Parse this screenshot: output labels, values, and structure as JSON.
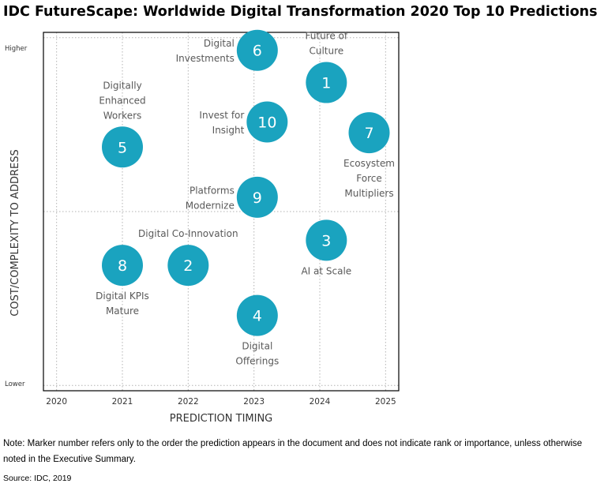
{
  "title": "IDC FutureScape: Worldwide Digital Transformation 2020 Top 10 Predictions",
  "note": "Note: Marker number refers only to the order the prediction appears in the document and does not indicate rank or importance, unless otherwise noted in the Executive Summary.",
  "source": "Source: IDC, 2019",
  "colors": {
    "bubble": "#1aa3bf",
    "bubble_text": "#ffffff",
    "label": "#595959",
    "grid": "#b3b3b3",
    "axis": "#000000"
  },
  "chart_data": {
    "type": "scatter",
    "title": "IDC FutureScape: Worldwide Digital Transformation 2020 Top 10 Predictions",
    "xlabel": "PREDICTION TIMING",
    "ylabel": "COST/COMPLEXITY TO ADDRESS",
    "xlim": [
      2019.8,
      2025.2
    ],
    "x_ticks": [
      "2020",
      "2021",
      "2022",
      "2023",
      "2024",
      "2025"
    ],
    "y_ticks": [
      "Higher",
      "Lower"
    ],
    "grid": true,
    "points": [
      {
        "marker": "1",
        "label": [
          "Future of",
          "Culture"
        ],
        "x": 2024.1,
        "y": 0.86,
        "label_pos": "above"
      },
      {
        "marker": "2",
        "label": [
          "Digital Co-Innovation"
        ],
        "x": 2022.0,
        "y": 0.35,
        "label_pos": "above"
      },
      {
        "marker": "3",
        "label": [
          "AI at Scale"
        ],
        "x": 2024.1,
        "y": 0.42,
        "label_pos": "below"
      },
      {
        "marker": "4",
        "label": [
          "Digital",
          "Offerings"
        ],
        "x": 2023.05,
        "y": 0.21,
        "label_pos": "below"
      },
      {
        "marker": "5",
        "label": [
          "Digitally",
          "Enhanced",
          "Workers"
        ],
        "x": 2021.0,
        "y": 0.68,
        "label_pos": "above"
      },
      {
        "marker": "6",
        "label": [
          "Digital",
          "Investments"
        ],
        "x": 2023.05,
        "y": 0.95,
        "label_pos": "left"
      },
      {
        "marker": "7",
        "label": [
          "Ecosystem",
          "Force",
          "Multipliers"
        ],
        "x": 2024.75,
        "y": 0.72,
        "label_pos": "below"
      },
      {
        "marker": "8",
        "label": [
          "Digital KPIs",
          "Mature"
        ],
        "x": 2021.0,
        "y": 0.35,
        "label_pos": "below"
      },
      {
        "marker": "9",
        "label": [
          "Platforms",
          "Modernize"
        ],
        "x": 2023.05,
        "y": 0.54,
        "label_pos": "left"
      },
      {
        "marker": "10",
        "label": [
          "Invest for",
          "Insight"
        ],
        "x": 2023.2,
        "y": 0.75,
        "label_pos": "left"
      }
    ]
  }
}
